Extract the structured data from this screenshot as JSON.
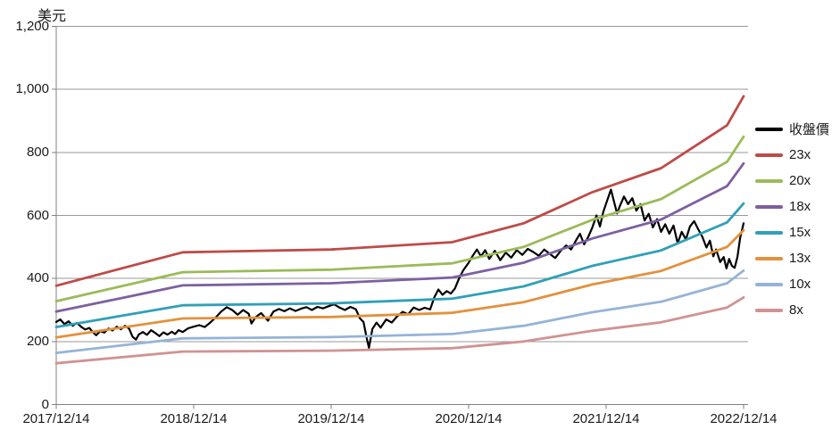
{
  "chart_data": {
    "type": "line",
    "title": "",
    "y_axis": {
      "title": "美元",
      "min": 0,
      "max": 1200,
      "tick_interval": 200,
      "ticks": [
        {
          "value": 0,
          "label": "0"
        },
        {
          "value": 200,
          "label": "200"
        },
        {
          "value": 400,
          "label": "400"
        },
        {
          "value": 600,
          "label": "600"
        },
        {
          "value": 800,
          "label": "800"
        },
        {
          "value": 1000,
          "label": "1,000"
        },
        {
          "value": 1200,
          "label": "1,200"
        }
      ]
    },
    "x_axis": {
      "unit": "years since 2017/12/14",
      "range": [
        0,
        5
      ],
      "ticks": [
        {
          "t": 0,
          "label": "2017/12/14"
        },
        {
          "t": 1,
          "label": "2018/12/14"
        },
        {
          "t": 2,
          "label": "2019/12/14"
        },
        {
          "t": 3,
          "label": "2020/12/14"
        },
        {
          "t": 4,
          "label": "2021/12/14"
        },
        {
          "t": 5,
          "label": "2022/12/14"
        }
      ]
    },
    "grid": {
      "horizontal": true,
      "color": "#999999",
      "axis_color": "#808080",
      "text_color": "#1a1a1a"
    },
    "legend": {
      "position": "right"
    },
    "series": [
      {
        "name": "收盤價",
        "color": "#000000",
        "width": 2.2,
        "role": "close-price",
        "points": [
          [
            0.0,
            262
          ],
          [
            0.03,
            270
          ],
          [
            0.06,
            255
          ],
          [
            0.09,
            264
          ],
          [
            0.12,
            250
          ],
          [
            0.15,
            259
          ],
          [
            0.18,
            247
          ],
          [
            0.21,
            238
          ],
          [
            0.24,
            243
          ],
          [
            0.27,
            228
          ],
          [
            0.29,
            220
          ],
          [
            0.32,
            233
          ],
          [
            0.35,
            228
          ],
          [
            0.38,
            241
          ],
          [
            0.41,
            235
          ],
          [
            0.44,
            247
          ],
          [
            0.47,
            239
          ],
          [
            0.5,
            250
          ],
          [
            0.53,
            241
          ],
          [
            0.555,
            215
          ],
          [
            0.58,
            206
          ],
          [
            0.6,
            222
          ],
          [
            0.63,
            230
          ],
          [
            0.66,
            221
          ],
          [
            0.69,
            236
          ],
          [
            0.72,
            227
          ],
          [
            0.75,
            217
          ],
          [
            0.78,
            229
          ],
          [
            0.81,
            222
          ],
          [
            0.84,
            231
          ],
          [
            0.865,
            224
          ],
          [
            0.89,
            236
          ],
          [
            0.92,
            230
          ],
          [
            0.96,
            242
          ],
          [
            1.0,
            247
          ],
          [
            1.04,
            252
          ],
          [
            1.08,
            246
          ],
          [
            1.12,
            260
          ],
          [
            1.16,
            276
          ],
          [
            1.2,
            295
          ],
          [
            1.24,
            309
          ],
          [
            1.28,
            300
          ],
          [
            1.32,
            285
          ],
          [
            1.36,
            300
          ],
          [
            1.4,
            288
          ],
          [
            1.42,
            257
          ],
          [
            1.45,
            277
          ],
          [
            1.49,
            290
          ],
          [
            1.54,
            266
          ],
          [
            1.58,
            295
          ],
          [
            1.62,
            303
          ],
          [
            1.66,
            296
          ],
          [
            1.7,
            305
          ],
          [
            1.74,
            297
          ],
          [
            1.78,
            304
          ],
          [
            1.82,
            309
          ],
          [
            1.86,
            300
          ],
          [
            1.9,
            310
          ],
          [
            1.94,
            305
          ],
          [
            1.98,
            312
          ],
          [
            2.02,
            318
          ],
          [
            2.06,
            308
          ],
          [
            2.1,
            300
          ],
          [
            2.14,
            310
          ],
          [
            2.18,
            302
          ],
          [
            2.21,
            273
          ],
          [
            2.235,
            262
          ],
          [
            2.26,
            208
          ],
          [
            2.275,
            180
          ],
          [
            2.3,
            240
          ],
          [
            2.33,
            260
          ],
          [
            2.36,
            244
          ],
          [
            2.4,
            270
          ],
          [
            2.44,
            260
          ],
          [
            2.48,
            280
          ],
          [
            2.52,
            294
          ],
          [
            2.56,
            286
          ],
          [
            2.6,
            308
          ],
          [
            2.64,
            300
          ],
          [
            2.68,
            307
          ],
          [
            2.72,
            302
          ],
          [
            2.75,
            340
          ],
          [
            2.78,
            365
          ],
          [
            2.81,
            348
          ],
          [
            2.84,
            360
          ],
          [
            2.87,
            352
          ],
          [
            2.9,
            368
          ],
          [
            2.93,
            400
          ],
          [
            2.96,
            425
          ],
          [
            3.0,
            450
          ],
          [
            3.03,
            472
          ],
          [
            3.06,
            492
          ],
          [
            3.09,
            470
          ],
          [
            3.12,
            490
          ],
          [
            3.15,
            462
          ],
          [
            3.19,
            488
          ],
          [
            3.23,
            458
          ],
          [
            3.27,
            482
          ],
          [
            3.31,
            466
          ],
          [
            3.35,
            490
          ],
          [
            3.39,
            475
          ],
          [
            3.43,
            494
          ],
          [
            3.47,
            484
          ],
          [
            3.51,
            472
          ],
          [
            3.55,
            492
          ],
          [
            3.59,
            478
          ],
          [
            3.63,
            465
          ],
          [
            3.67,
            488
          ],
          [
            3.71,
            505
          ],
          [
            3.745,
            492
          ],
          [
            3.78,
            520
          ],
          [
            3.81,
            542
          ],
          [
            3.84,
            508
          ],
          [
            3.87,
            532
          ],
          [
            3.9,
            562
          ],
          [
            3.93,
            600
          ],
          [
            3.955,
            565
          ],
          [
            3.98,
            612
          ],
          [
            4.01,
            650
          ],
          [
            4.035,
            682
          ],
          [
            4.06,
            640
          ],
          [
            4.08,
            606
          ],
          [
            4.1,
            630
          ],
          [
            4.13,
            660
          ],
          [
            4.16,
            636
          ],
          [
            4.19,
            655
          ],
          [
            4.22,
            615
          ],
          [
            4.25,
            636
          ],
          [
            4.28,
            584
          ],
          [
            4.31,
            605
          ],
          [
            4.34,
            562
          ],
          [
            4.37,
            588
          ],
          [
            4.4,
            548
          ],
          [
            4.43,
            572
          ],
          [
            4.46,
            542
          ],
          [
            4.49,
            568
          ],
          [
            4.52,
            512
          ],
          [
            4.55,
            548
          ],
          [
            4.58,
            524
          ],
          [
            4.61,
            565
          ],
          [
            4.64,
            582
          ],
          [
            4.67,
            556
          ],
          [
            4.7,
            532
          ],
          [
            4.73,
            498
          ],
          [
            4.755,
            520
          ],
          [
            4.78,
            470
          ],
          [
            4.8,
            492
          ],
          [
            4.83,
            452
          ],
          [
            4.855,
            468
          ],
          [
            4.875,
            432
          ],
          [
            4.895,
            462
          ],
          [
            4.915,
            440
          ],
          [
            4.935,
            434
          ],
          [
            4.955,
            468
          ],
          [
            4.975,
            528
          ],
          [
            5.0,
            575
          ]
        ]
      },
      {
        "name": "23x",
        "color": "#BE4B48",
        "width": 2.8,
        "role": "pe-band",
        "points": [
          [
            0,
            377
          ],
          [
            0.92,
            483
          ],
          [
            2.0,
            492
          ],
          [
            2.88,
            515
          ],
          [
            3.4,
            575
          ],
          [
            3.9,
            674
          ],
          [
            4.4,
            750
          ],
          [
            4.88,
            886
          ],
          [
            5.0,
            978
          ]
        ]
      },
      {
        "name": "20x",
        "color": "#9BBB59",
        "width": 2.8,
        "role": "pe-band",
        "points": [
          [
            0,
            328
          ],
          [
            0.92,
            420
          ],
          [
            2.0,
            428
          ],
          [
            2.88,
            448
          ],
          [
            3.4,
            500
          ],
          [
            3.9,
            586
          ],
          [
            4.4,
            652
          ],
          [
            4.88,
            770
          ],
          [
            5.0,
            850
          ]
        ]
      },
      {
        "name": "18x",
        "color": "#7D60A0",
        "width": 2.8,
        "role": "pe-band",
        "points": [
          [
            0,
            295
          ],
          [
            0.92,
            378
          ],
          [
            2.0,
            385
          ],
          [
            2.88,
            403
          ],
          [
            3.4,
            450
          ],
          [
            3.9,
            527
          ],
          [
            4.4,
            587
          ],
          [
            4.88,
            693
          ],
          [
            5.0,
            765
          ]
        ]
      },
      {
        "name": "15x",
        "color": "#31A0B8",
        "width": 2.8,
        "role": "pe-band",
        "points": [
          [
            0,
            246
          ],
          [
            0.92,
            315
          ],
          [
            2.0,
            321
          ],
          [
            2.88,
            336
          ],
          [
            3.4,
            375
          ],
          [
            3.9,
            440
          ],
          [
            4.4,
            489
          ],
          [
            4.88,
            578
          ],
          [
            5.0,
            638
          ]
        ]
      },
      {
        "name": "13x",
        "color": "#E3913D",
        "width": 2.8,
        "role": "pe-band",
        "points": [
          [
            0,
            213
          ],
          [
            0.92,
            273
          ],
          [
            2.0,
            278
          ],
          [
            2.88,
            291
          ],
          [
            3.4,
            325
          ],
          [
            3.9,
            381
          ],
          [
            4.4,
            424
          ],
          [
            4.88,
            500
          ],
          [
            5.0,
            553
          ]
        ]
      },
      {
        "name": "10x",
        "color": "#95B3D7",
        "width": 2.8,
        "role": "pe-band",
        "points": [
          [
            0,
            164
          ],
          [
            0.92,
            210
          ],
          [
            2.0,
            214
          ],
          [
            2.88,
            224
          ],
          [
            3.4,
            250
          ],
          [
            3.9,
            293
          ],
          [
            4.4,
            326
          ],
          [
            4.88,
            385
          ],
          [
            5.0,
            425
          ]
        ]
      },
      {
        "name": "8x",
        "color": "#D09392",
        "width": 2.8,
        "role": "pe-band",
        "points": [
          [
            0,
            131
          ],
          [
            0.92,
            168
          ],
          [
            2.0,
            171
          ],
          [
            2.88,
            179
          ],
          [
            3.4,
            200
          ],
          [
            3.9,
            234
          ],
          [
            4.4,
            261
          ],
          [
            4.88,
            308
          ],
          [
            5.0,
            340
          ]
        ]
      }
    ]
  }
}
